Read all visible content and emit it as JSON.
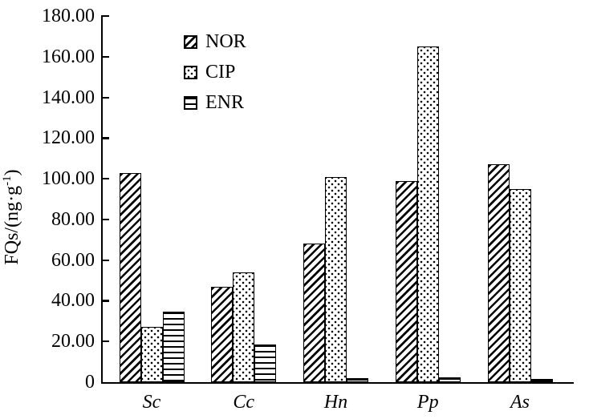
{
  "figure": {
    "background": "#ffffff",
    "foreground": "#000000"
  },
  "chart_data": {
    "type": "bar",
    "title": "",
    "xlabel": "",
    "ylabel": "FQs/(ng·g⁻¹)",
    "ylabel_parts": {
      "main": "FQs/(ng·g",
      "sup": "-1",
      "close": ")"
    },
    "categories": [
      "Sc",
      "Cc",
      "Hn",
      "Pp",
      "As"
    ],
    "series": [
      {
        "name": "NOR",
        "pattern": "diagonal-hatch",
        "values": [
          103,
          47,
          68,
          99,
          107
        ]
      },
      {
        "name": "CIP",
        "pattern": "dots",
        "values": [
          27,
          54,
          101,
          165,
          95
        ]
      },
      {
        "name": "ENR",
        "pattern": "horizontal-lines",
        "values": [
          34.5,
          18.5,
          2,
          2.5,
          1.5
        ]
      }
    ],
    "ylim": [
      0,
      180
    ],
    "ytick_values": [
      0,
      20,
      40,
      60,
      80,
      100,
      120,
      140,
      160,
      180
    ],
    "ytick_labels": [
      "0",
      "20.00",
      "40.00",
      "60.00",
      "80.00",
      "100.00",
      "120.00",
      "140.00",
      "160.00",
      "180.00"
    ],
    "grid": false,
    "legend": {
      "position": "upper-left-inside",
      "entries": [
        "NOR",
        "CIP",
        "ENR"
      ]
    }
  }
}
